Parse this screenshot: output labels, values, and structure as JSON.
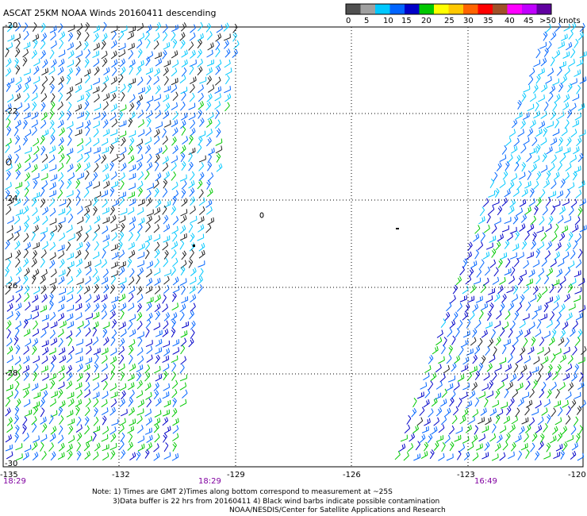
{
  "title": "ASCAT 25KM NOAA Winds 20160411 descending",
  "legend": {
    "colors": [
      "#505050",
      "#a0a0a0",
      "#00c8ff",
      "#0064ff",
      "#0000c8",
      "#00c800",
      "#ffff00",
      "#ffc800",
      "#ff6400",
      "#ff0000",
      "#a05028",
      "#ff00ff",
      "#c000ff",
      "#6000a0"
    ],
    "labels": [
      "0",
      "5",
      "10",
      "15",
      "20",
      "25",
      "30",
      "35",
      "40",
      "45",
      ">50 knots"
    ]
  },
  "lat_labels": [
    "-20",
    "-22",
    "-24",
    "-26",
    "-28",
    "-30"
  ],
  "lon_labels": [
    "-135",
    "-132",
    "-129",
    "-126",
    "-123",
    "-120"
  ],
  "time_labels": [
    "18:29",
    "18:29",
    "16:49"
  ],
  "notes": [
    "Note: 1) Times are GMT 2)Times along bottom correspond to measurement at ~25S",
    "3)Data buffer is 22 hrs from 20160411 4) Black wind barbs indicate possible contamination",
    "NOAA/NESDIS/Center for Satellite Applications and Research"
  ]
}
